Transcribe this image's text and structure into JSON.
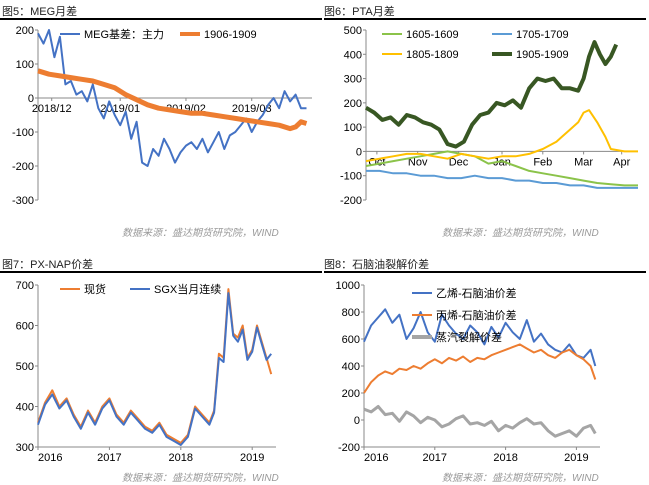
{
  "charts": [
    {
      "id": "mega",
      "title": "图5：MEG月差",
      "source": "数据来源：盛达期货研究院，WIND",
      "chart_data": {
        "type": "line",
        "ylim": [
          -300,
          200
        ],
        "yticks": [
          200,
          100,
          0,
          -100,
          -200,
          -300
        ],
        "xlim": [
          0,
          100
        ],
        "xtick_labels": [
          {
            "x": 5,
            "label": "2018/12"
          },
          {
            "x": 30,
            "label": "2019/01"
          },
          {
            "x": 54,
            "label": "2019/02"
          },
          {
            "x": 78,
            "label": "2019/03"
          }
        ],
        "legend": "top",
        "series": [
          {
            "name": "MEG基差：主力",
            "color": "#4472C4",
            "x": [
              0,
              2,
              4,
              6,
              8,
              10,
              12,
              14,
              16,
              18,
              20,
              22,
              24,
              26,
              28,
              30,
              32,
              34,
              36,
              38,
              40,
              42,
              44,
              46,
              48,
              50,
              52,
              54,
              56,
              58,
              60,
              62,
              64,
              66,
              68,
              70,
              72,
              74,
              76,
              78,
              80,
              82,
              84,
              86,
              88,
              90,
              92,
              94,
              96,
              98
            ],
            "y": [
              190,
              160,
              200,
              120,
              180,
              40,
              50,
              10,
              20,
              -10,
              40,
              -30,
              -60,
              -10,
              -50,
              -80,
              -40,
              -120,
              -70,
              -190,
              -200,
              -150,
              -170,
              -120,
              -150,
              -190,
              -160,
              -140,
              -130,
              -150,
              -120,
              -160,
              -130,
              -100,
              -150,
              -110,
              -100,
              -80,
              -60,
              -100,
              -70,
              -50,
              -20,
              0,
              -30,
              20,
              -10,
              10,
              -30,
              -30
            ]
          },
          {
            "name": "1906-1909",
            "color": "#ED7D31",
            "x": [
              0,
              4,
              8,
              12,
              16,
              20,
              24,
              28,
              32,
              36,
              40,
              44,
              48,
              52,
              56,
              60,
              64,
              68,
              72,
              76,
              80,
              84,
              88,
              92,
              94,
              96,
              98
            ],
            "y": [
              80,
              70,
              65,
              60,
              55,
              50,
              40,
              30,
              10,
              -5,
              -20,
              -30,
              -35,
              -40,
              -45,
              -45,
              -50,
              -55,
              -60,
              -65,
              -70,
              -75,
              -80,
              -90,
              -85,
              -70,
              -75
            ]
          }
        ]
      }
    },
    {
      "id": "pta",
      "title": "图6：PTA月差",
      "source": "数据来源：盛达期货研究院，WIND",
      "chart_data": {
        "type": "line",
        "ylim": [
          -200,
          500
        ],
        "yticks": [
          500,
          400,
          300,
          200,
          100,
          0,
          -100,
          -200
        ],
        "xlim": [
          0,
          100
        ],
        "xtick_labels": [
          {
            "x": 4,
            "label": "Oct"
          },
          {
            "x": 19,
            "label": "Nov"
          },
          {
            "x": 34,
            "label": "Dec"
          },
          {
            "x": 50,
            "label": "Jan"
          },
          {
            "x": 65,
            "label": "Feb"
          },
          {
            "x": 80,
            "label": "Mar"
          },
          {
            "x": 94,
            "label": "Apr"
          }
        ],
        "legend": "top",
        "series": [
          {
            "name": "1605-1609",
            "color": "#8BC34A",
            "x": [
              0,
              5,
              10,
              15,
              20,
              25,
              30,
              35,
              40,
              45,
              50,
              55,
              60,
              65,
              70,
              75,
              80,
              85,
              90,
              95,
              100
            ],
            "y": [
              -60,
              -50,
              -40,
              -30,
              -20,
              -10,
              0,
              -10,
              -20,
              -50,
              -40,
              -60,
              -80,
              -90,
              -100,
              -110,
              -120,
              -130,
              -135,
              -140,
              -140
            ]
          },
          {
            "name": "1705-1709",
            "color": "#5B9BD5",
            "x": [
              0,
              5,
              10,
              15,
              20,
              25,
              30,
              35,
              40,
              45,
              50,
              55,
              60,
              65,
              70,
              75,
              80,
              85,
              90,
              95,
              100
            ],
            "y": [
              -80,
              -80,
              -90,
              -90,
              -100,
              -100,
              -110,
              -110,
              -100,
              -110,
              -110,
              -120,
              -120,
              -130,
              -130,
              -140,
              -140,
              -150,
              -150,
              -150,
              -150
            ]
          },
          {
            "name": "1805-1809",
            "color": "#FFC000",
            "x": [
              0,
              5,
              10,
              15,
              20,
              25,
              30,
              35,
              40,
              45,
              50,
              55,
              60,
              65,
              70,
              72,
              75,
              78,
              80,
              82,
              85,
              88,
              90,
              95,
              100
            ],
            "y": [
              -40,
              -30,
              -20,
              -10,
              -10,
              -20,
              -30,
              -10,
              -20,
              -30,
              -20,
              -20,
              -10,
              10,
              40,
              60,
              90,
              120,
              160,
              170,
              120,
              60,
              10,
              0,
              0
            ]
          },
          {
            "name": "1905-1909",
            "color": "#385723",
            "x": [
              0,
              3,
              6,
              9,
              12,
              15,
              18,
              21,
              24,
              27,
              30,
              33,
              36,
              39,
              42,
              45,
              48,
              51,
              54,
              57,
              60,
              63,
              66,
              69,
              72,
              75,
              78,
              80,
              82,
              84,
              86,
              88,
              90,
              92
            ],
            "y": [
              180,
              160,
              130,
              140,
              110,
              150,
              140,
              120,
              110,
              90,
              30,
              20,
              40,
              110,
              150,
              160,
              200,
              190,
              210,
              180,
              260,
              300,
              290,
              300,
              260,
              260,
              250,
              300,
              390,
              450,
              400,
              360,
              390,
              440
            ]
          }
        ]
      }
    },
    {
      "id": "pxnap",
      "title": "图7：PX-NAP价差",
      "source": "数据来源：盛达期货研究院，WIND",
      "chart_data": {
        "type": "line",
        "ylim": [
          300,
          700
        ],
        "yticks": [
          700,
          600,
          500,
          400,
          300
        ],
        "xlim": [
          0,
          100
        ],
        "xtick_labels": [
          {
            "x": 0,
            "label": "2016"
          },
          {
            "x": 30,
            "label": "2017"
          },
          {
            "x": 60,
            "label": "2018"
          },
          {
            "x": 90,
            "label": "2019"
          }
        ],
        "legend": "top",
        "series": [
          {
            "name": "现货",
            "color": "#ED7D31",
            "x": [
              0,
              3,
              6,
              9,
              12,
              15,
              18,
              21,
              24,
              27,
              30,
              33,
              36,
              39,
              42,
              45,
              48,
              51,
              54,
              57,
              60,
              63,
              66,
              69,
              72,
              74,
              76,
              78,
              80,
              82,
              84,
              86,
              88,
              90,
              92,
              94,
              96,
              98
            ],
            "y": [
              360,
              410,
              440,
              400,
              420,
              380,
              350,
              390,
              360,
              400,
              420,
              380,
              360,
              390,
              370,
              350,
              340,
              360,
              330,
              320,
              310,
              330,
              400,
              380,
              360,
              390,
              530,
              520,
              690,
              580,
              570,
              600,
              520,
              540,
              600,
              560,
              520,
              480
            ]
          },
          {
            "name": "SGX当月连续",
            "color": "#4472C4",
            "x": [
              0,
              3,
              6,
              9,
              12,
              15,
              18,
              21,
              24,
              27,
              30,
              33,
              36,
              39,
              42,
              45,
              48,
              51,
              54,
              57,
              60,
              63,
              66,
              69,
              72,
              74,
              76,
              78,
              80,
              82,
              84,
              86,
              88,
              90,
              92,
              94,
              96,
              98
            ],
            "y": [
              355,
              405,
              430,
              395,
              415,
              375,
              345,
              385,
              355,
              395,
              415,
              375,
              355,
              385,
              365,
              345,
              335,
              355,
              325,
              315,
              305,
              325,
              395,
              375,
              355,
              385,
              520,
              510,
              680,
              575,
              560,
              590,
              515,
              535,
              595,
              555,
              515,
              530
            ]
          }
        ]
      }
    },
    {
      "id": "naphtha",
      "title": "图8：石脑油裂解价差",
      "source": "数据来源：盛达期货研究院，WIND",
      "chart_data": {
        "type": "line",
        "ylim": [
          -200,
          1000
        ],
        "yticks": [
          1000,
          800,
          600,
          400,
          200,
          0,
          -200
        ],
        "xlim": [
          0,
          100
        ],
        "xtick_labels": [
          {
            "x": 0,
            "label": "2016"
          },
          {
            "x": 30,
            "label": "2017"
          },
          {
            "x": 60,
            "label": "2018"
          },
          {
            "x": 90,
            "label": "2019"
          }
        ],
        "legend": "top",
        "series": [
          {
            "name": "乙烯-石脑油价差",
            "color": "#4472C4",
            "x": [
              0,
              3,
              6,
              9,
              12,
              15,
              18,
              21,
              24,
              27,
              30,
              33,
              36,
              39,
              42,
              45,
              48,
              51,
              54,
              57,
              60,
              63,
              66,
              69,
              72,
              75,
              78,
              81,
              84,
              87,
              90,
              93,
              96,
              98
            ],
            "y": [
              580,
              700,
              760,
              820,
              720,
              780,
              600,
              680,
              800,
              650,
              580,
              780,
              700,
              640,
              600,
              700,
              650,
              560,
              690,
              610,
              720,
              650,
              600,
              740,
              580,
              640,
              560,
              520,
              500,
              560,
              480,
              460,
              520,
              400
            ]
          },
          {
            "name": "丙烯-石脑油价差",
            "color": "#ED7D31",
            "x": [
              0,
              3,
              6,
              9,
              12,
              15,
              18,
              21,
              24,
              27,
              30,
              33,
              36,
              39,
              42,
              45,
              48,
              51,
              54,
              57,
              60,
              63,
              66,
              69,
              72,
              75,
              78,
              81,
              84,
              87,
              90,
              93,
              96,
              98
            ],
            "y": [
              200,
              280,
              330,
              360,
              340,
              380,
              370,
              400,
              380,
              420,
              450,
              420,
              460,
              440,
              470,
              430,
              460,
              450,
              480,
              500,
              520,
              540,
              560,
              530,
              500,
              520,
              480,
              460,
              500,
              520,
              480,
              450,
              400,
              300
            ]
          },
          {
            "name": "蒸汽裂解价差",
            "color": "#A5A5A5",
            "x": [
              0,
              3,
              6,
              9,
              12,
              15,
              18,
              21,
              24,
              27,
              30,
              33,
              36,
              39,
              42,
              45,
              48,
              51,
              54,
              57,
              60,
              63,
              66,
              69,
              72,
              75,
              78,
              81,
              84,
              87,
              90,
              93,
              96,
              98
            ],
            "y": [
              80,
              60,
              100,
              40,
              50,
              -10,
              60,
              30,
              -20,
              20,
              0,
              -50,
              -30,
              10,
              30,
              -30,
              -20,
              -40,
              -10,
              -80,
              -40,
              -60,
              -20,
              10,
              -30,
              -20,
              -80,
              -120,
              -100,
              -80,
              -120,
              -60,
              -40,
              -100
            ]
          }
        ]
      }
    }
  ]
}
